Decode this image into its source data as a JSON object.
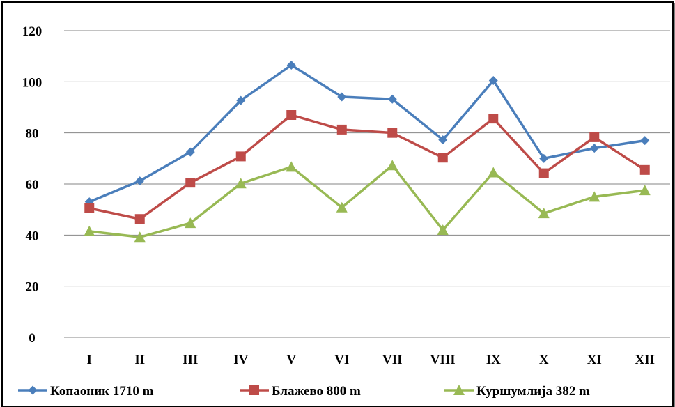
{
  "chart_data": {
    "type": "line",
    "title": "",
    "xlabel": "",
    "ylabel": "",
    "categories": [
      "I",
      "II",
      "III",
      "IV",
      "V",
      "VI",
      "VII",
      "VIII",
      "IX",
      "X",
      "XI",
      "XII"
    ],
    "ylim": [
      0,
      120
    ],
    "yticks": [
      "0",
      "20",
      "40",
      "60",
      "80",
      "100",
      "120"
    ],
    "grid": true,
    "legend_position": "bottom",
    "series": [
      {
        "name": "Копаоник 1710 m",
        "marker": "diamond",
        "color": "#4a7ebb",
        "values": [
          53.0,
          61.2,
          72.5,
          92.7,
          106.5,
          94.1,
          93.2,
          77.3,
          100.5,
          70.0,
          74.0,
          77.0
        ]
      },
      {
        "name": "Блажево 800 m",
        "marker": "square",
        "color": "#be4b48",
        "values": [
          50.5,
          46.3,
          60.5,
          70.8,
          87.0,
          81.3,
          80.0,
          70.3,
          85.6,
          64.2,
          78.3,
          65.5
        ]
      },
      {
        "name": "Куршумлија 382 m",
        "marker": "triangle",
        "color": "#98b954",
        "values": [
          41.5,
          39.2,
          44.7,
          60.2,
          66.7,
          50.8,
          67.3,
          42.0,
          64.5,
          48.5,
          55.0,
          57.5
        ]
      }
    ]
  }
}
